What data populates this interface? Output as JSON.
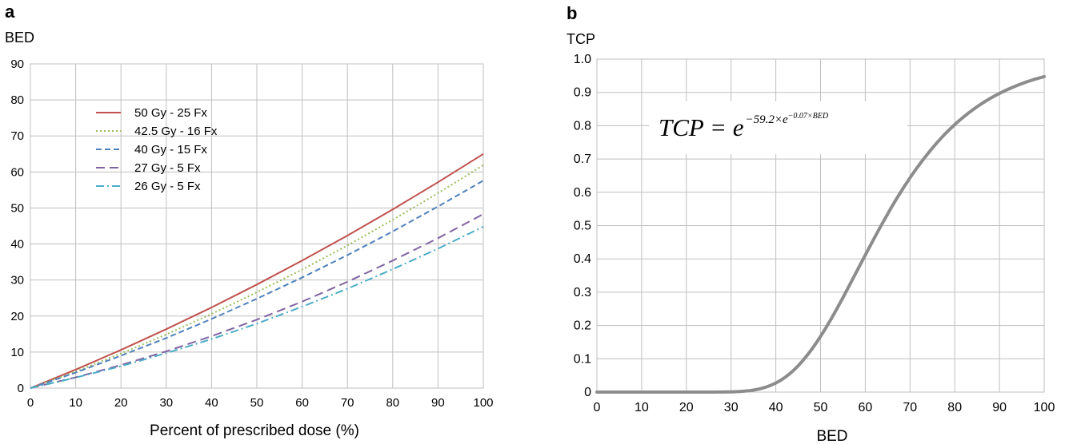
{
  "chart_data": [
    {
      "panel_label": "a",
      "type": "line",
      "ylabel": "BED",
      "xlabel": "Percent of prescribed dose  (%)",
      "xlim": [
        0,
        100
      ],
      "ylim": [
        0,
        90
      ],
      "x_ticks": [
        0,
        10,
        20,
        30,
        40,
        50,
        60,
        70,
        80,
        90,
        100
      ],
      "y_ticks": [
        0,
        10,
        20,
        30,
        40,
        50,
        60,
        70,
        80,
        90
      ],
      "grid": true,
      "legend_placement": "top-left",
      "x": [
        0,
        10,
        20,
        30,
        40,
        50,
        60,
        70,
        80,
        90,
        100
      ],
      "series": [
        {
          "name": "50 Gy - 25 Fx",
          "color": "#c0504d",
          "dash": "solid",
          "values": [
            0,
            5.15,
            10.6,
            16.35,
            22.4,
            28.75,
            35.4,
            42.35,
            49.6,
            57.15,
            65.0
          ]
        },
        {
          "name": "42.5 Gy - 16 Fx",
          "color": "#9bbb59",
          "dash": "dotted",
          "values": [
            0,
            4.6,
            9.6,
            14.9,
            20.6,
            26.6,
            32.9,
            39.6,
            46.7,
            54.1,
            61.9
          ]
        },
        {
          "name": "40 Gy - 15 Fx",
          "color": "#4f81bd",
          "dash": "dashed",
          "values": [
            0,
            4.3,
            9.0,
            13.9,
            19.2,
            24.8,
            30.7,
            36.9,
            43.5,
            50.4,
            57.6
          ]
        },
        {
          "name": "27 Gy - 5 Fx",
          "color": "#8064a2",
          "dash": "long-dash",
          "values": [
            0,
            3.0,
            6.4,
            10.2,
            14.4,
            19.0,
            24.0,
            29.5,
            35.4,
            41.6,
            48.3
          ]
        },
        {
          "name": "26 Gy - 5 Fx",
          "color": "#4bacc6",
          "dash": "dash-dot",
          "values": [
            0,
            2.9,
            6.1,
            9.7,
            13.6,
            17.9,
            22.6,
            27.6,
            33.0,
            38.7,
            44.8
          ]
        }
      ]
    },
    {
      "panel_label": "b",
      "type": "line",
      "ylabel": "TCP",
      "xlabel": "BED",
      "xlim": [
        0,
        100
      ],
      "ylim": [
        0,
        1.0
      ],
      "x_ticks": [
        0,
        10,
        20,
        30,
        40,
        50,
        60,
        70,
        80,
        90,
        100
      ],
      "y_ticks": [
        "0",
        "0.1",
        "0.2",
        "0.3",
        "0.4",
        "0.5",
        "0.6",
        "0.7",
        "0.8",
        "0.9",
        "1.0"
      ],
      "grid": true,
      "equation": {
        "lhs": "TCP = e",
        "exponent": "−59.2×e",
        "inner_exponent": "−0.07×BED"
      },
      "series": [
        {
          "color": "#8c8c8c",
          "formula": "exp(-59.2*exp(-0.07*x))"
        }
      ]
    }
  ]
}
